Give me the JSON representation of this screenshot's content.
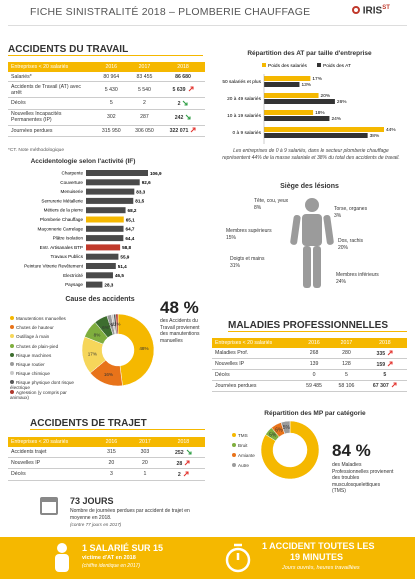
{
  "header": {
    "title": "FICHE SINISTRALITÉ 2018 – PLOMBERIE CHAUFFAGE",
    "logo": "IRIS",
    "logo_suffix": "ST"
  },
  "work_accidents": {
    "title": "ACCIDENTS DU TRAVAIL",
    "table": {
      "header": [
        "Entreprises < 20 salariés",
        "2016",
        "2017",
        "2018"
      ],
      "rows": [
        [
          "Salariés*",
          "80 964",
          "83 455",
          "86 680"
        ],
        [
          "Accidents de Travail (AT) avec arrêt",
          "5 430",
          "5 540",
          "5 639"
        ],
        [
          "Décès",
          "5",
          "2",
          "2"
        ],
        [
          "Nouvelles Incapacités Permanentes (IP)",
          "302",
          "287",
          "242"
        ],
        [
          "Journées perdues",
          "315 950",
          "306 050",
          "322 071"
        ]
      ],
      "trends": [
        null,
        "up",
        "down",
        "down",
        "up"
      ]
    },
    "note": "*CT. Note méthodologique"
  },
  "lesions": {
    "title": "Siège des lésions",
    "items": [
      {
        "label": "Tête, cou, yeux",
        "value": "8%"
      },
      {
        "label": "Torse, organes",
        "value": "3%"
      },
      {
        "label": "Membres supérieurs",
        "value": "15%"
      },
      {
        "label": "Dos, rachis",
        "value": "20%"
      },
      {
        "label": "Doigts et mains",
        "value": "31%"
      },
      {
        "label": "Membres inférieurs",
        "value": "24%"
      }
    ]
  },
  "causes_stat": {
    "value": "48 %",
    "text": "des Accidents du Travail provienent des manutentions manuelles"
  },
  "occupational_diseases": {
    "title": "MALADIES PROFESSIONNELLES",
    "table": {
      "header": [
        "Entreprises < 20 salariés",
        "2016",
        "2017",
        "2018"
      ],
      "rows": [
        [
          "Maladies Prof.",
          "268",
          "280",
          "335"
        ],
        [
          "Nouvelles IP",
          "139",
          "128",
          "159"
        ],
        [
          "Décès",
          "0",
          "5",
          "5"
        ],
        [
          "Journées perdues",
          "59 485",
          "58 106",
          "67 307"
        ]
      ],
      "trends": [
        "up",
        "up",
        null,
        "up"
      ]
    }
  },
  "commute_accidents": {
    "title": "ACCIDENTS DE TRAJET",
    "table": {
      "header": [
        "Entreprises < 20 salariés",
        "2016",
        "2017",
        "2018"
      ],
      "rows": [
        [
          "Accidents trajet",
          "315",
          "303",
          "252"
        ],
        [
          "Nouvelles IP",
          "20",
          "20",
          "28"
        ],
        [
          "Décès",
          "3",
          "1",
          "2"
        ]
      ],
      "trends": [
        "down",
        "up",
        "up"
      ]
    },
    "stat": {
      "value": "73 JOURS",
      "text": "Nombre de journées perdues par accident de trajet en moyenne en 2018.",
      "sub": "(contre 77 jours en 2017)"
    }
  },
  "mp_stat": {
    "value": "84 %",
    "text": "des Maladies Professionnelles provienent des troubles musculosquelettiques (TMS)"
  },
  "footer": [
    {
      "headline": "1 SALARIÉ SUR 15",
      "line1": "victime d'AT en 2018",
      "line2": "(chiffre identique en 2017)"
    },
    {
      "headline": "1 ACCIDENT TOUTES LES",
      "headline2": "19 MINUTES",
      "line1": "Jours ouvrés, heures travaillées"
    }
  ],
  "chart_data": [
    {
      "type": "hbar-group",
      "title": "Répartition des AT par taille d'entreprise",
      "categories": [
        "50 salariés et plus",
        "20 à 49 salariés",
        "10 à 19 salariés",
        "0 à 9 salariés"
      ],
      "series": [
        {
          "name": "Poids des salariés",
          "color": "#f5b800",
          "values": [
            17,
            20,
            18,
            44
          ],
          "value_labels": [
            "17%",
            "20%",
            "18%",
            "44%"
          ]
        },
        {
          "name": "Poids des AT",
          "color": "#333333",
          "values": [
            13,
            26,
            24,
            38
          ],
          "value_labels": [
            "13%",
            "26%",
            "24%",
            "38%"
          ]
        }
      ],
      "note": "Les entreprises de 0 à 9 salariés, dans le secteur plomberie chauffage représentent 44% de la masse salariale et 38% du total des accidents de travail."
    },
    {
      "type": "hbar",
      "title": "Accidentologie selon l'activité (IF)",
      "categories": [
        "Charpente",
        "Couverture",
        "Menuiserie",
        "Serrurerie Métallerie",
        "Métiers de la pierre",
        "Plomberie Chauffage",
        "Maçonnerie Carrelage",
        "Plâtre Isolation",
        "Entr. Artisanales BTP",
        "Travaux Publics",
        "Peinture Vitrerie Revêtement",
        "Electricité",
        "Paysage"
      ],
      "values": [
        106.9,
        92.6,
        83.3,
        81.5,
        68.2,
        65.1,
        64.7,
        64.4,
        58.8,
        55.9,
        51.4,
        46.5,
        28.3
      ],
      "value_labels": [
        "106,9",
        "92,6",
        "83,3",
        "81,5",
        "68,2",
        "65,1",
        "64,7",
        "64,4",
        "58,8",
        "55,9",
        "51,4",
        "46,5",
        "28,3"
      ],
      "colors": [
        "#4a4a4a",
        "#4a4a4a",
        "#4a4a4a",
        "#4a4a4a",
        "#4a4a4a",
        "#f5b800",
        "#4a4a4a",
        "#4a4a4a",
        "#c0392b",
        "#4a4a4a",
        "#4a4a4a",
        "#4a4a4a",
        "#4a4a4a"
      ]
    },
    {
      "type": "donut",
      "title": "Cause des accidents",
      "categories": [
        "Manutentions manuelles",
        "Chutes de hauteur",
        "Outillage à main",
        "Chutes de plain-pied",
        "Risque machines",
        "Risque routier",
        "Risque chimique",
        "Risque physique dont risque électrique",
        "Agression (y compris par animaux)"
      ],
      "values": [
        48,
        16,
        17,
        8,
        6,
        2,
        1,
        1,
        1
      ],
      "value_labels": [
        "48%",
        "16%",
        "17%",
        "8%",
        "6%",
        "2%",
        "1%",
        "1%",
        "1%"
      ],
      "colors": [
        "#f5b800",
        "#e8731a",
        "#f6d65a",
        "#7fae3e",
        "#3d6e2f",
        "#9b9b9b",
        "#c9c9c9",
        "#5a5a5a",
        "#b03a2e"
      ]
    },
    {
      "type": "donut",
      "title": "Répartition des MP par catégorie",
      "categories": [
        "TMS",
        "Bruit",
        "Amiante",
        "Autre"
      ],
      "values": [
        84,
        5,
        6,
        5
      ],
      "value_labels": [
        null,
        "5%",
        "6%",
        "5%"
      ],
      "colors": [
        "#f5b800",
        "#7fae3e",
        "#e8731a",
        "#9b9b9b"
      ]
    }
  ]
}
